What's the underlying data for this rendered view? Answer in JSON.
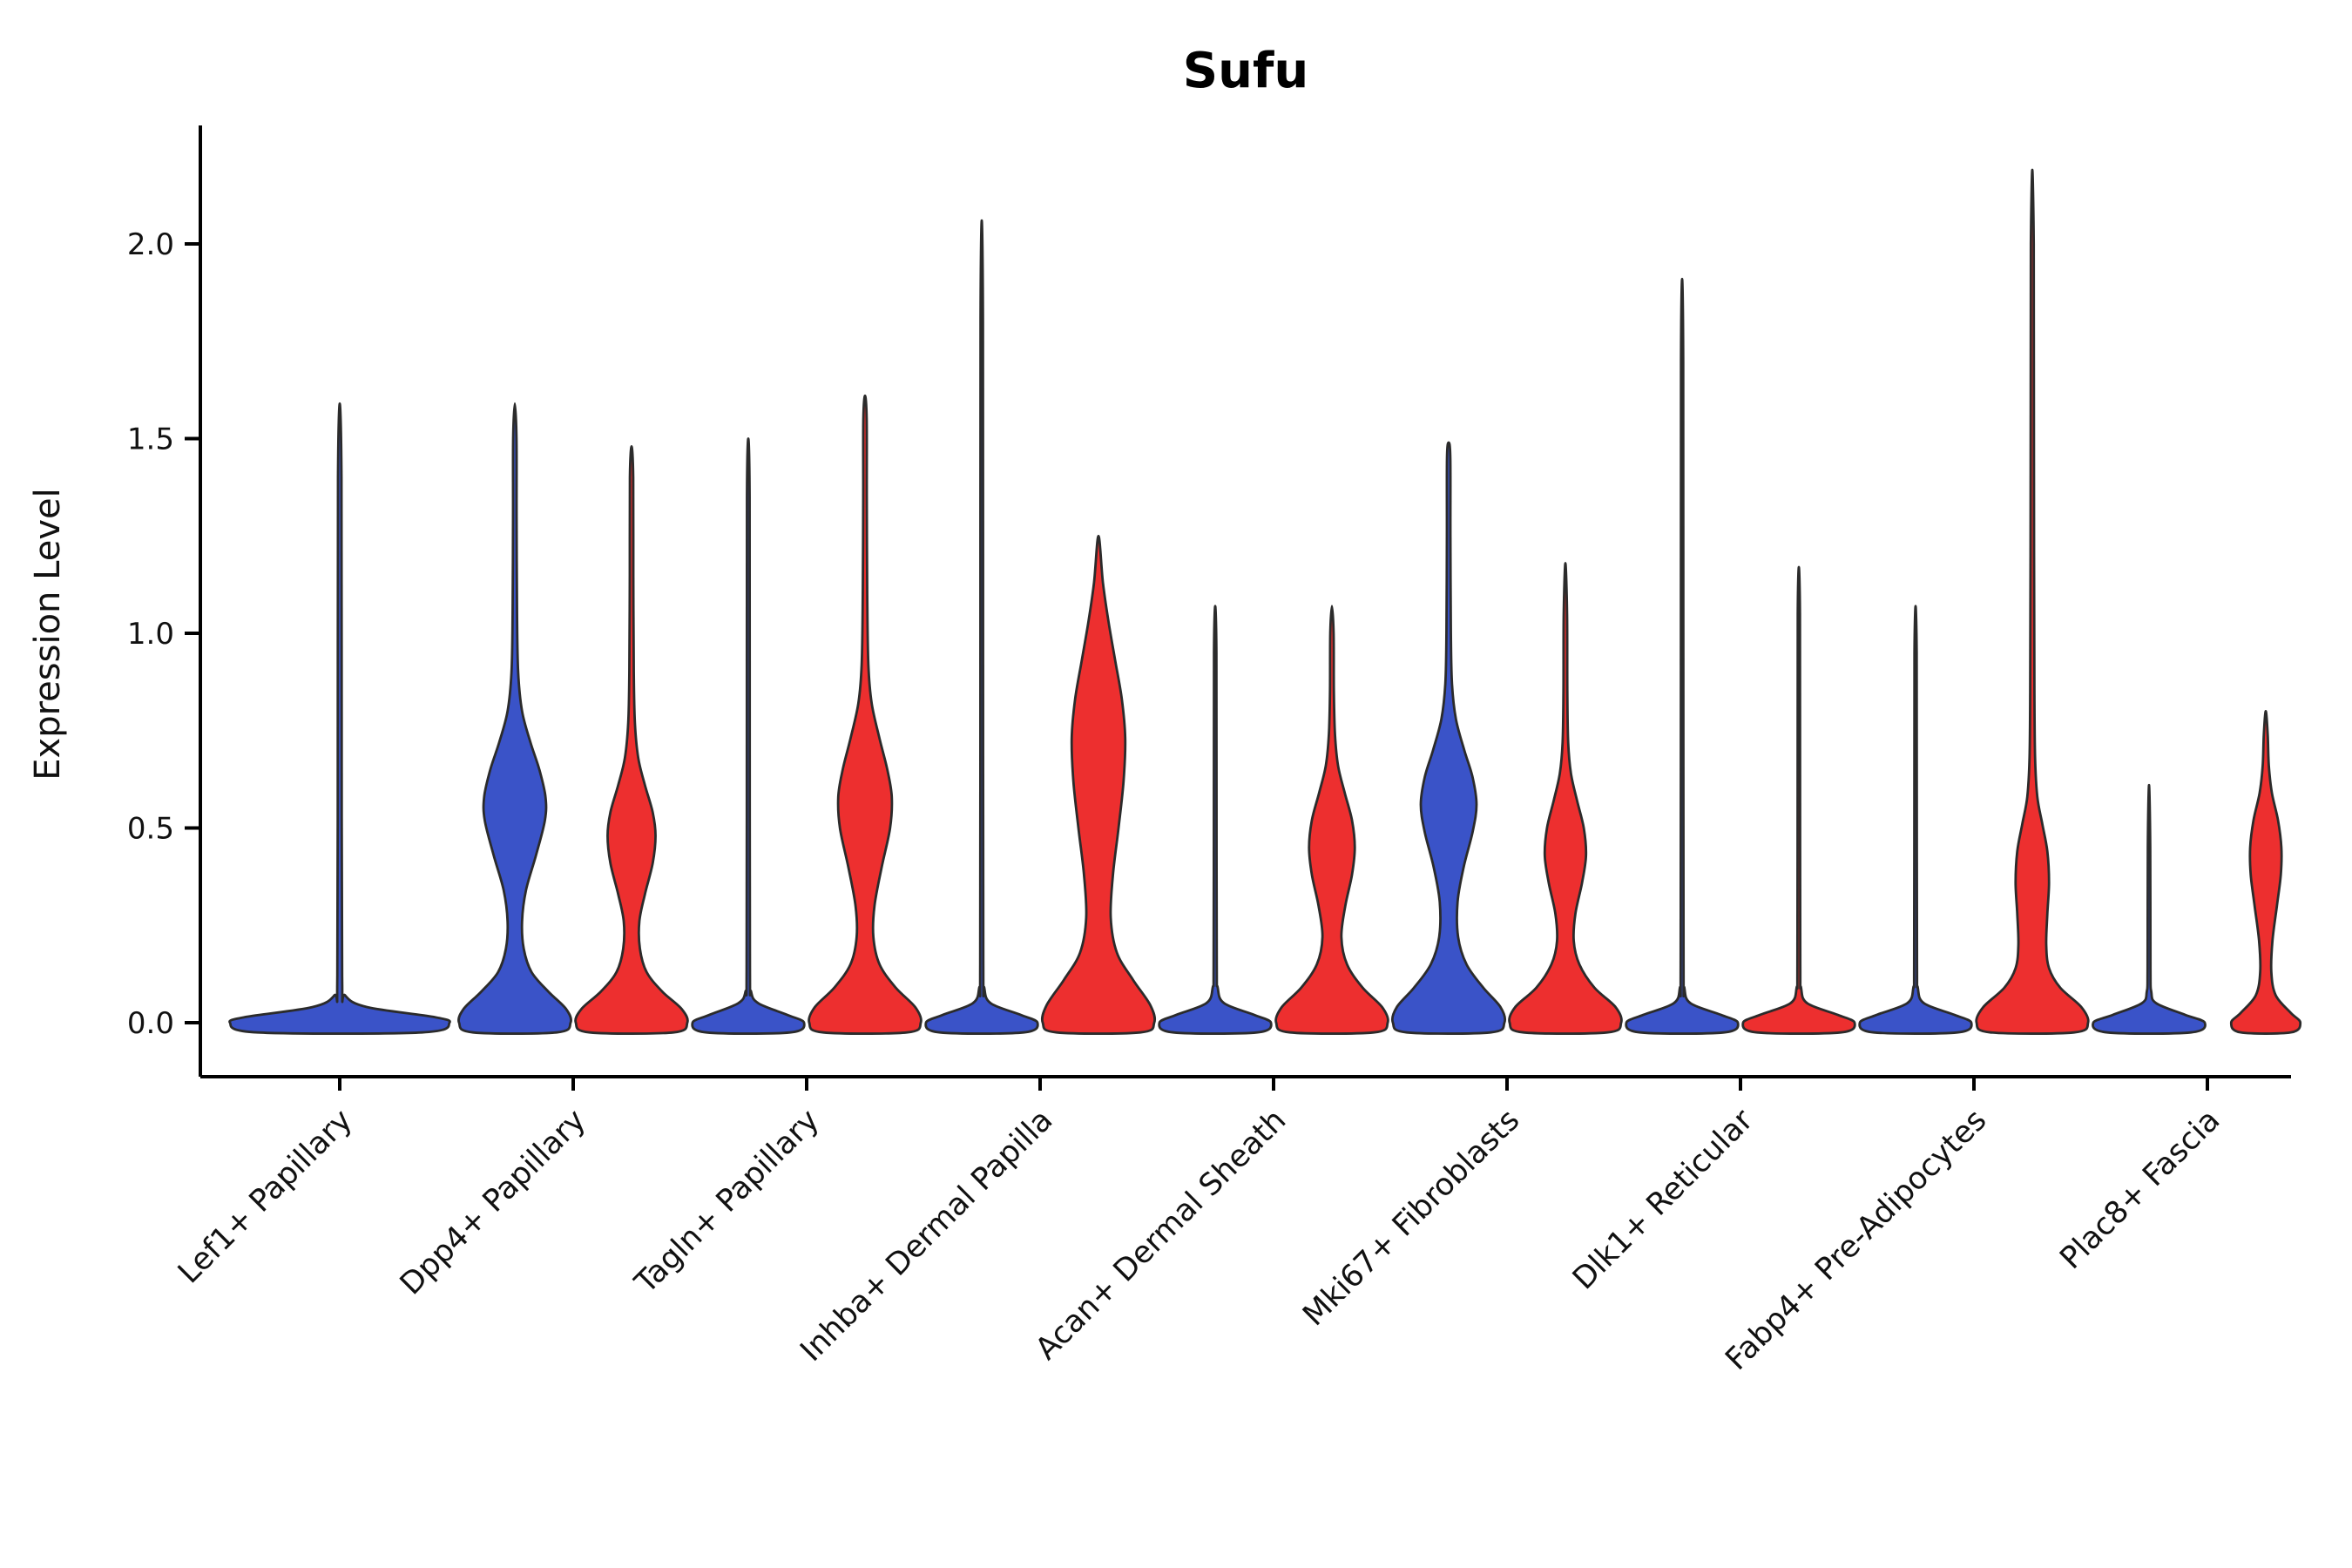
{
  "chart_data": {
    "type": "violin",
    "title": "Sufu",
    "xlabel": "",
    "ylabel": "Expression Level",
    "yticks": [
      "0.0",
      "0.5",
      "1.0",
      "1.5",
      "2.0"
    ],
    "ylim": [
      -0.14,
      2.32
    ],
    "grid": false,
    "legend_position": "none",
    "split_groups": 2,
    "colors": {
      "group_blue": "#3A53C8",
      "group_red": "#ED2F2F",
      "outline": "#2B2B2B",
      "axis": "#000000",
      "text": "#111111",
      "background": "#FFFFFF"
    },
    "categories": [
      "Lef1+ Papillary",
      "Dpp4+ Papillary",
      "Tagln+ Papillary",
      "Inhba+ Dermal Papilla",
      "Acan+ Dermal Sheath",
      "Mki67+ Fibroblasts",
      "Dlk1+ Reticular",
      "Fabp4+ Pre-Adipocytes",
      "Plac8+ Fascia"
    ],
    "violins": [
      {
        "category_index": 0,
        "side": "center",
        "color": "group_blue",
        "max_expression": 1.59,
        "profile": [
          [
            -0.025,
            0.75
          ],
          [
            0,
            1.0
          ],
          [
            0.015,
            0.85
          ],
          [
            0.04,
            0.25
          ],
          [
            0.07,
            0.05
          ],
          [
            0.12,
            0.022
          ],
          [
            0.8,
            0.018
          ],
          [
            1.4,
            0.016
          ],
          [
            1.59,
            0
          ]
        ]
      },
      {
        "category_index": 1,
        "side": "left",
        "color": "group_blue",
        "max_expression": 1.59,
        "profile": [
          [
            -0.025,
            0.75
          ],
          [
            0,
            1.0
          ],
          [
            0.035,
            0.92
          ],
          [
            0.08,
            0.6
          ],
          [
            0.13,
            0.3
          ],
          [
            0.19,
            0.16
          ],
          [
            0.26,
            0.13
          ],
          [
            0.34,
            0.2
          ],
          [
            0.43,
            0.38
          ],
          [
            0.52,
            0.54
          ],
          [
            0.58,
            0.55
          ],
          [
            0.65,
            0.44
          ],
          [
            0.72,
            0.28
          ],
          [
            0.8,
            0.13
          ],
          [
            0.9,
            0.06
          ],
          [
            1.05,
            0.04
          ],
          [
            1.3,
            0.032
          ],
          [
            1.5,
            0.03
          ],
          [
            1.59,
            0
          ]
        ]
      },
      {
        "category_index": 1,
        "side": "right",
        "color": "group_red",
        "max_expression": 1.48,
        "profile": [
          [
            -0.025,
            0.75
          ],
          [
            0,
            1.0
          ],
          [
            0.035,
            0.9
          ],
          [
            0.08,
            0.55
          ],
          [
            0.13,
            0.27
          ],
          [
            0.19,
            0.15
          ],
          [
            0.26,
            0.14
          ],
          [
            0.33,
            0.24
          ],
          [
            0.41,
            0.38
          ],
          [
            0.48,
            0.43
          ],
          [
            0.54,
            0.38
          ],
          [
            0.61,
            0.24
          ],
          [
            0.68,
            0.12
          ],
          [
            0.77,
            0.06
          ],
          [
            0.9,
            0.04
          ],
          [
            1.15,
            0.032
          ],
          [
            1.4,
            0.03
          ],
          [
            1.48,
            0
          ]
        ]
      },
      {
        "category_index": 2,
        "side": "left",
        "color": "group_blue",
        "max_expression": 1.5,
        "profile": [
          [
            -0.025,
            0.75
          ],
          [
            0,
            1.0
          ],
          [
            0.02,
            0.7
          ],
          [
            0.05,
            0.18
          ],
          [
            0.08,
            0.05
          ],
          [
            0.14,
            0.03
          ],
          [
            0.8,
            0.026
          ],
          [
            1.35,
            0.024
          ],
          [
            1.5,
            0
          ]
        ]
      },
      {
        "category_index": 2,
        "side": "right",
        "color": "group_red",
        "max_expression": 1.61,
        "profile": [
          [
            -0.025,
            0.75
          ],
          [
            0,
            1.0
          ],
          [
            0.04,
            0.9
          ],
          [
            0.09,
            0.55
          ],
          [
            0.15,
            0.26
          ],
          [
            0.22,
            0.15
          ],
          [
            0.3,
            0.17
          ],
          [
            0.4,
            0.3
          ],
          [
            0.5,
            0.45
          ],
          [
            0.58,
            0.48
          ],
          [
            0.65,
            0.4
          ],
          [
            0.73,
            0.26
          ],
          [
            0.82,
            0.12
          ],
          [
            0.92,
            0.06
          ],
          [
            1.1,
            0.04
          ],
          [
            1.35,
            0.032
          ],
          [
            1.55,
            0.03
          ],
          [
            1.61,
            0
          ]
        ]
      },
      {
        "category_index": 3,
        "side": "left",
        "color": "group_blue",
        "max_expression": 2.06,
        "profile": [
          [
            -0.025,
            0.75
          ],
          [
            0,
            1.0
          ],
          [
            0.02,
            0.7
          ],
          [
            0.05,
            0.16
          ],
          [
            0.09,
            0.045
          ],
          [
            0.15,
            0.028
          ],
          [
            1.0,
            0.024
          ],
          [
            1.8,
            0.022
          ],
          [
            2.06,
            0
          ]
        ]
      },
      {
        "category_index": 3,
        "side": "right",
        "color": "group_red",
        "max_expression": 1.25,
        "profile": [
          [
            -0.025,
            0.75
          ],
          [
            0,
            1.0
          ],
          [
            0.045,
            0.93
          ],
          [
            0.11,
            0.62
          ],
          [
            0.18,
            0.33
          ],
          [
            0.27,
            0.22
          ],
          [
            0.38,
            0.26
          ],
          [
            0.5,
            0.36
          ],
          [
            0.62,
            0.45
          ],
          [
            0.73,
            0.48
          ],
          [
            0.83,
            0.42
          ],
          [
            0.93,
            0.3
          ],
          [
            1.03,
            0.18
          ],
          [
            1.13,
            0.08
          ],
          [
            1.25,
            0
          ]
        ]
      },
      {
        "category_index": 4,
        "side": "left",
        "color": "group_blue",
        "max_expression": 1.07,
        "profile": [
          [
            -0.025,
            0.75
          ],
          [
            0,
            1.0
          ],
          [
            0.02,
            0.7
          ],
          [
            0.05,
            0.16
          ],
          [
            0.09,
            0.045
          ],
          [
            0.15,
            0.028
          ],
          [
            0.6,
            0.024
          ],
          [
            0.95,
            0.022
          ],
          [
            1.07,
            0
          ]
        ]
      },
      {
        "category_index": 4,
        "side": "right",
        "color": "group_red",
        "max_expression": 1.07,
        "profile": [
          [
            -0.025,
            0.75
          ],
          [
            0,
            1.0
          ],
          [
            0.04,
            0.9
          ],
          [
            0.09,
            0.55
          ],
          [
            0.15,
            0.27
          ],
          [
            0.22,
            0.17
          ],
          [
            0.3,
            0.24
          ],
          [
            0.38,
            0.36
          ],
          [
            0.45,
            0.41
          ],
          [
            0.52,
            0.36
          ],
          [
            0.59,
            0.23
          ],
          [
            0.66,
            0.11
          ],
          [
            0.74,
            0.055
          ],
          [
            0.85,
            0.035
          ],
          [
            1.0,
            0.03
          ],
          [
            1.07,
            0
          ]
        ]
      },
      {
        "category_index": 5,
        "side": "left",
        "color": "group_blue",
        "max_expression": 1.49,
        "profile": [
          [
            -0.025,
            0.75
          ],
          [
            0,
            1.0
          ],
          [
            0.04,
            0.93
          ],
          [
            0.09,
            0.62
          ],
          [
            0.15,
            0.32
          ],
          [
            0.22,
            0.17
          ],
          [
            0.31,
            0.16
          ],
          [
            0.4,
            0.27
          ],
          [
            0.49,
            0.43
          ],
          [
            0.56,
            0.5
          ],
          [
            0.63,
            0.43
          ],
          [
            0.7,
            0.28
          ],
          [
            0.78,
            0.13
          ],
          [
            0.87,
            0.06
          ],
          [
            1.0,
            0.04
          ],
          [
            1.25,
            0.032
          ],
          [
            1.45,
            0.03
          ],
          [
            1.49,
            0
          ]
        ]
      },
      {
        "category_index": 5,
        "side": "right",
        "color": "group_red",
        "max_expression": 1.18,
        "profile": [
          [
            -0.025,
            0.75
          ],
          [
            0,
            1.0
          ],
          [
            0.04,
            0.9
          ],
          [
            0.09,
            0.52
          ],
          [
            0.15,
            0.25
          ],
          [
            0.21,
            0.15
          ],
          [
            0.28,
            0.18
          ],
          [
            0.36,
            0.3
          ],
          [
            0.43,
            0.37
          ],
          [
            0.5,
            0.33
          ],
          [
            0.57,
            0.21
          ],
          [
            0.64,
            0.1
          ],
          [
            0.72,
            0.05
          ],
          [
            0.85,
            0.035
          ],
          [
            1.05,
            0.03
          ],
          [
            1.18,
            0
          ]
        ]
      },
      {
        "category_index": 6,
        "side": "left",
        "color": "group_blue",
        "max_expression": 1.91,
        "profile": [
          [
            -0.025,
            0.75
          ],
          [
            0,
            1.0
          ],
          [
            0.02,
            0.7
          ],
          [
            0.05,
            0.15
          ],
          [
            0.09,
            0.04
          ],
          [
            0.15,
            0.026
          ],
          [
            1.0,
            0.022
          ],
          [
            1.7,
            0.02
          ],
          [
            1.91,
            0
          ]
        ]
      },
      {
        "category_index": 6,
        "side": "right",
        "color": "group_red",
        "max_expression": 1.17,
        "profile": [
          [
            -0.025,
            0.75
          ],
          [
            0,
            1.0
          ],
          [
            0.02,
            0.7
          ],
          [
            0.05,
            0.15
          ],
          [
            0.09,
            0.04
          ],
          [
            0.15,
            0.026
          ],
          [
            0.7,
            0.022
          ],
          [
            1.05,
            0.02
          ],
          [
            1.17,
            0
          ]
        ]
      },
      {
        "category_index": 7,
        "side": "left",
        "color": "group_blue",
        "max_expression": 1.07,
        "profile": [
          [
            -0.025,
            0.75
          ],
          [
            0,
            1.0
          ],
          [
            0.02,
            0.7
          ],
          [
            0.05,
            0.15
          ],
          [
            0.09,
            0.04
          ],
          [
            0.15,
            0.026
          ],
          [
            0.65,
            0.022
          ],
          [
            0.95,
            0.02
          ],
          [
            1.07,
            0
          ]
        ]
      },
      {
        "category_index": 7,
        "side": "right",
        "color": "group_red",
        "max_expression": 2.19,
        "profile": [
          [
            -0.025,
            0.75
          ],
          [
            0,
            1.0
          ],
          [
            0.04,
            0.88
          ],
          [
            0.09,
            0.5
          ],
          [
            0.14,
            0.3
          ],
          [
            0.2,
            0.25
          ],
          [
            0.28,
            0.27
          ],
          [
            0.36,
            0.3
          ],
          [
            0.44,
            0.27
          ],
          [
            0.51,
            0.18
          ],
          [
            0.58,
            0.09
          ],
          [
            0.68,
            0.05
          ],
          [
            0.85,
            0.038
          ],
          [
            1.2,
            0.032
          ],
          [
            1.7,
            0.028
          ],
          [
            2.0,
            0.026
          ],
          [
            2.19,
            0
          ]
        ]
      },
      {
        "category_index": 8,
        "side": "left",
        "color": "group_blue",
        "max_expression": 0.61,
        "profile": [
          [
            -0.025,
            0.75
          ],
          [
            0,
            1.0
          ],
          [
            0.02,
            0.65
          ],
          [
            0.05,
            0.13
          ],
          [
            0.08,
            0.04
          ],
          [
            0.14,
            0.026
          ],
          [
            0.45,
            0.022
          ],
          [
            0.61,
            0
          ]
        ]
      },
      {
        "category_index": 8,
        "side": "right",
        "color": "group_red",
        "max_expression": 0.8,
        "profile": [
          [
            -0.025,
            0.45
          ],
          [
            0,
            0.62
          ],
          [
            0.025,
            0.45
          ],
          [
            0.07,
            0.18
          ],
          [
            0.13,
            0.1
          ],
          [
            0.21,
            0.12
          ],
          [
            0.3,
            0.2
          ],
          [
            0.38,
            0.27
          ],
          [
            0.45,
            0.28
          ],
          [
            0.52,
            0.22
          ],
          [
            0.59,
            0.11
          ],
          [
            0.66,
            0.055
          ],
          [
            0.74,
            0.035
          ],
          [
            0.8,
            0
          ]
        ]
      }
    ]
  }
}
